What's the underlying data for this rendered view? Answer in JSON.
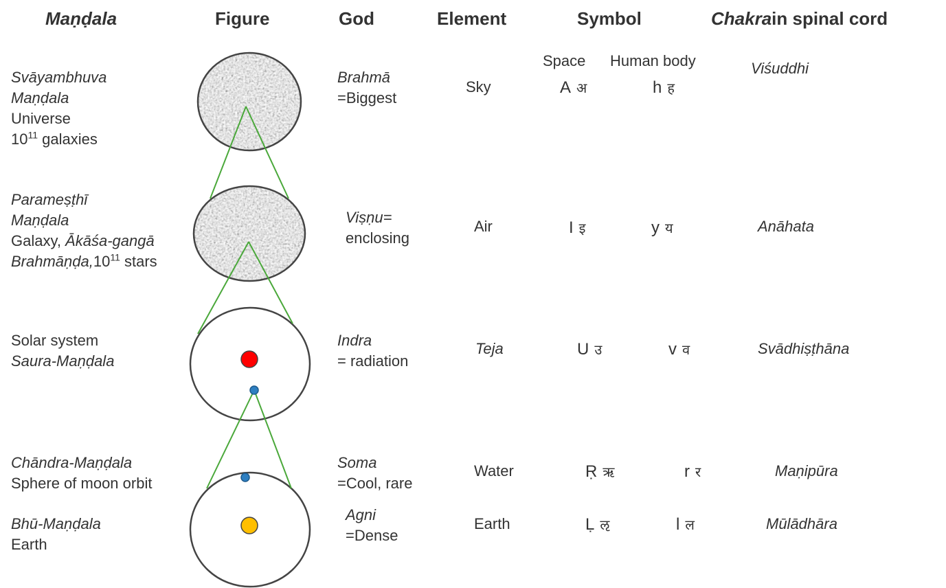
{
  "headers": {
    "mandala": "Maṇḍala",
    "figure": "Figure",
    "god": "God",
    "element": "Element",
    "symbol": "Symbol",
    "chakra_italic": "Chakra",
    "chakra_rest": "in spinal cord"
  },
  "symbol_subheaders": {
    "space": "Space",
    "human_body": "Human body"
  },
  "rows": [
    {
      "mandala": {
        "line1": "Svāyambhuva",
        "line2": "Maṇḍala",
        "line3": "Universe",
        "line4_base": "10",
        "line4_exp": "11",
        "line4_rest": " galaxies"
      },
      "god": {
        "name": "Brahmā",
        "meaning": "=Biggest"
      },
      "element": "Sky",
      "space_latin": "A",
      "space_dev": "अ",
      "body_latin": "h",
      "body_dev": "ह",
      "chakra": "Viśuddhi"
    },
    {
      "mandala": {
        "line1": "Parameṣṭhī",
        "line2": "Maṇḍala",
        "line3a": "Galaxy, ",
        "line3b": "Ākāśa-gangā",
        "line4a": "Brahmāṇḍa,",
        "line4_base": "10",
        "line4_exp": "11",
        "line4_rest": " stars"
      },
      "god": {
        "name": "Viṣṇu=",
        "meaning": "enclosing"
      },
      "element": "Air",
      "space_latin": "I",
      "space_dev": "इ",
      "body_latin": "y",
      "body_dev": "य",
      "chakra": "Anāhata"
    },
    {
      "mandala": {
        "line1": "Solar system",
        "line2": "Saura-Maṇḍala"
      },
      "god": {
        "name": "Indra",
        "meaning": "= radiation"
      },
      "element": "Teja",
      "space_latin": "U",
      "space_dev": "उ",
      "body_latin": "v",
      "body_dev": "व",
      "chakra": "Svādhiṣṭhāna"
    },
    {
      "mandala": {
        "line1": "Chāndra-Maṇḍala",
        "line2": "Sphere of moon orbit"
      },
      "god": {
        "name": "Soma",
        "meaning": "=Cool, rare"
      },
      "element": "Water",
      "space_latin": "Ṛ",
      "space_dev": "ऋ",
      "body_latin": "r",
      "body_dev": "र",
      "chakra": "Maṇipūra"
    },
    {
      "mandala": {
        "line1": "Bhū-Maṇḍala",
        "line2": "Earth"
      },
      "god": {
        "name": "Agni",
        "meaning": "=Dense"
      },
      "element": "Earth",
      "space_latin": "Ḷ",
      "space_dev": "ऌ",
      "body_latin": "l",
      "body_dev": "ल",
      "chakra": "Mūlādhāra"
    }
  ],
  "colors": {
    "text": "#333333",
    "connector": "#4aa83a",
    "sun": "#ff0000",
    "planet": "#2e7fc1",
    "earth": "#ffbf00",
    "circle_stroke": "#444444"
  }
}
